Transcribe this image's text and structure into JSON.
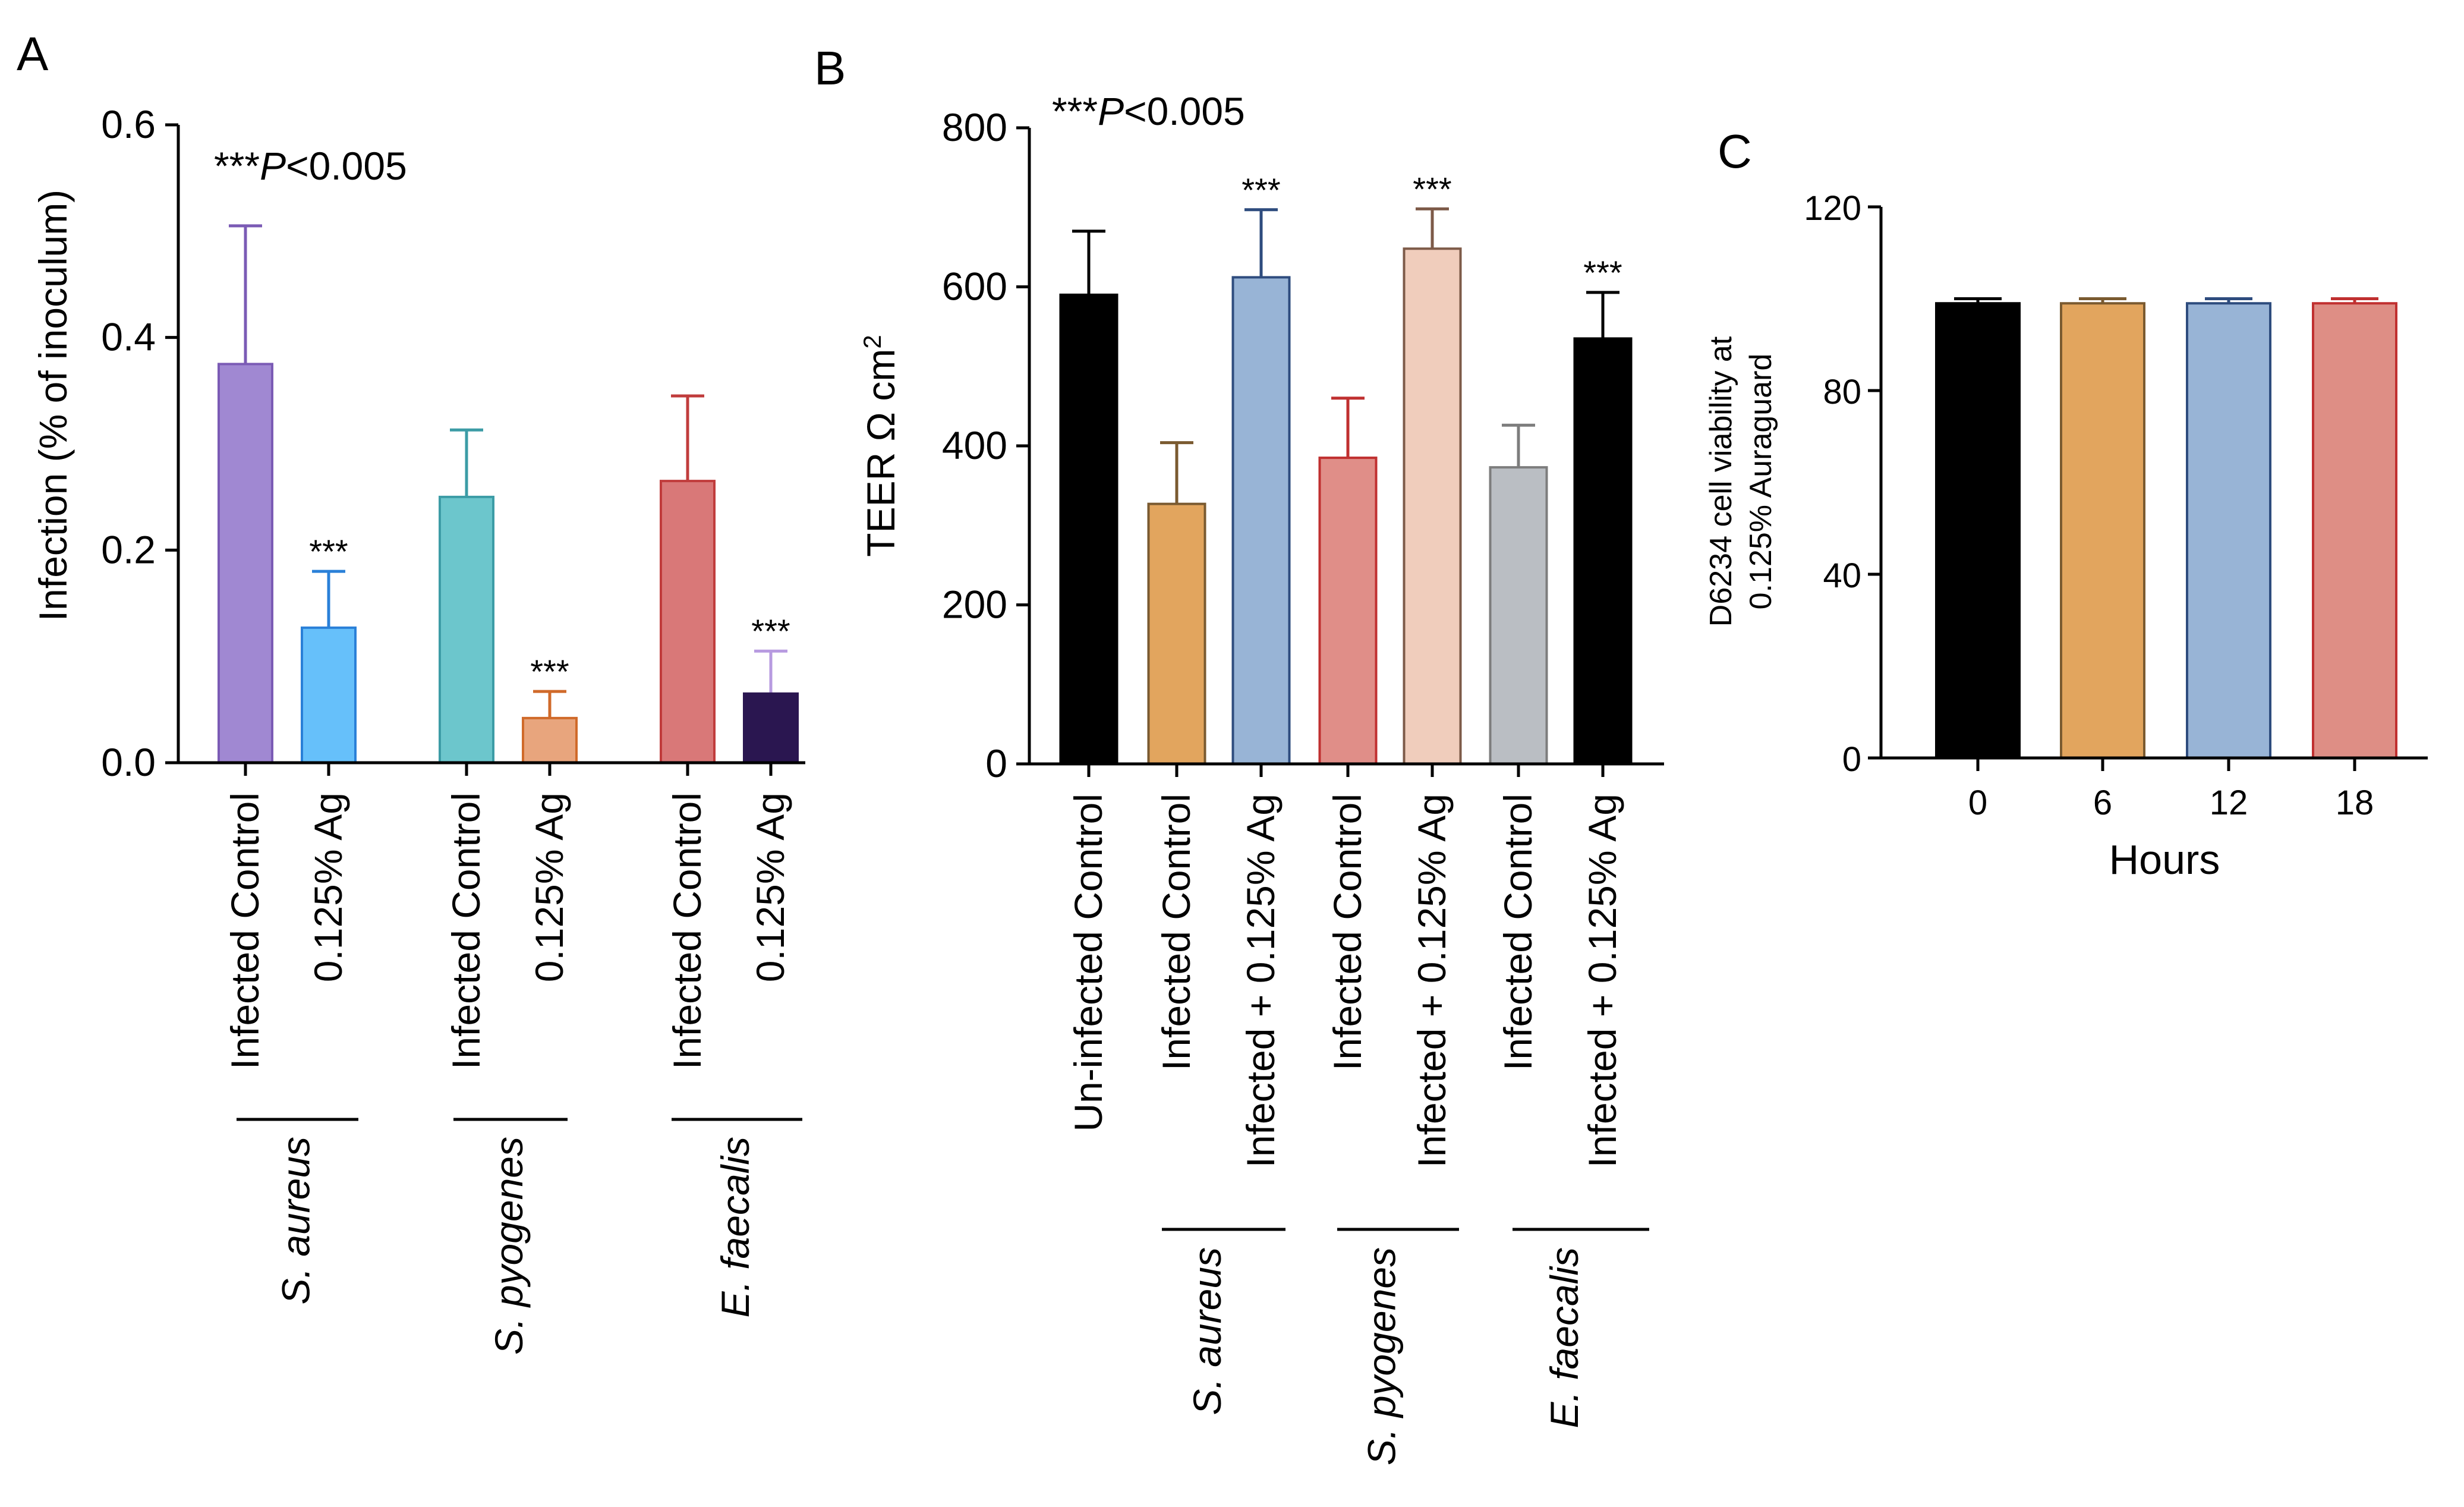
{
  "panels": [
    {
      "letter": "A",
      "pvalue_prefix": "***",
      "pvalue_p": "P",
      "pvalue_rest": "<0.005"
    },
    {
      "letter": "B",
      "pvalue_prefix": "***",
      "pvalue_p": "P",
      "pvalue_rest": "<0.005"
    },
    {
      "letter": "C"
    }
  ],
  "chart_data": [
    {
      "panel": "A",
      "type": "bar",
      "title": "",
      "ylabel": "Infection (% of inoculum)",
      "xlabel": "",
      "ylim": [
        0,
        0.6
      ],
      "yticks": [
        "0.0",
        "0.2",
        "0.4",
        "0.6"
      ],
      "annotation": "***P<0.005",
      "groups": [
        "S. aureus",
        "S. pyogenes",
        "E. faecalis"
      ],
      "bars": [
        {
          "label": "Infected Control",
          "group": 0,
          "value": 0.375,
          "error": 0.13,
          "color": "#a088d2",
          "stroke": "#7b5bb5",
          "sig": ""
        },
        {
          "label": "0.125% Ag",
          "group": 0,
          "value": 0.127,
          "error": 0.053,
          "color": "#66c0fa",
          "stroke": "#2a80d8",
          "sig": "***"
        },
        {
          "label": "Infected Control",
          "group": 1,
          "value": 0.25,
          "error": 0.063,
          "color": "#6cc6cc",
          "stroke": "#3c9ca6",
          "sig": ""
        },
        {
          "label": "0.125% Ag",
          "group": 1,
          "value": 0.042,
          "error": 0.025,
          "color": "#e8a57d",
          "stroke": "#d06a2a",
          "sig": "***"
        },
        {
          "label": "Infected Control",
          "group": 2,
          "value": 0.265,
          "error": 0.08,
          "color": "#d97878",
          "stroke": "#c03c3c",
          "sig": ""
        },
        {
          "label": "0.125% Ag",
          "group": 2,
          "value": 0.065,
          "error": 0.04,
          "color": "#2a1650",
          "stroke": "#2a1650",
          "err_color": "#b79ae0",
          "sig": "***"
        }
      ]
    },
    {
      "panel": "B",
      "type": "bar",
      "title": "",
      "ylabel": "TEER Ω cm",
      "ylabel_sup": "2",
      "xlabel": "",
      "ylim": [
        0,
        800
      ],
      "yticks": [
        "0",
        "200",
        "400",
        "600",
        "800"
      ],
      "annotation": "***P<0.005",
      "groups": [
        "S. aureus",
        "S. pyogenes",
        "E. faecalis"
      ],
      "bars": [
        {
          "label": "Un-infected Control",
          "group": -1,
          "value": 590,
          "error": 80,
          "color": "#000000",
          "stroke": "#000000",
          "sig": ""
        },
        {
          "label": "Infected Control",
          "group": 0,
          "value": 327,
          "error": 77,
          "color": "#e2a55e",
          "stroke": "#7a5a30",
          "sig": ""
        },
        {
          "label": "Infected + 0.125% Ag",
          "group": 0,
          "value": 612,
          "error": 85,
          "color": "#98b4d6",
          "stroke": "#2e4c7e",
          "sig": "***"
        },
        {
          "label": "Infected Control",
          "group": 1,
          "value": 385,
          "error": 75,
          "color": "#e08e88",
          "stroke": "#c03030",
          "sig": ""
        },
        {
          "label": "Infected + 0.125% Ag",
          "group": 1,
          "value": 648,
          "error": 50,
          "color": "#f0cdbc",
          "stroke": "#7d5a48",
          "sig": "***"
        },
        {
          "label": "Infected Control",
          "group": 2,
          "value": 373,
          "error": 53,
          "color": "#babec3",
          "stroke": "#7d7d7d",
          "sig": ""
        },
        {
          "label": "Infected + 0.125% Ag",
          "group": 2,
          "value": 535,
          "error": 58,
          "color": "#000000",
          "stroke": "#000000",
          "sig": "***"
        }
      ]
    },
    {
      "panel": "C",
      "type": "bar",
      "title": "",
      "ylabel_lines": [
        "D6234 cell viability at",
        "0.125% Auraguard"
      ],
      "xlabel": "Hours",
      "ylim": [
        0,
        120
      ],
      "yticks": [
        "0",
        "40",
        "80",
        "120"
      ],
      "categories": [
        "0",
        "6",
        "12",
        "18"
      ],
      "values": [
        99,
        99,
        99,
        99
      ],
      "errors": [
        1,
        1,
        1,
        1
      ],
      "colors": [
        "#000000",
        "#e2a55e",
        "#98b4d6",
        "#de8e85"
      ],
      "strokes": [
        "#000000",
        "#7a5a30",
        "#2e4c7e",
        "#c03030"
      ]
    }
  ]
}
